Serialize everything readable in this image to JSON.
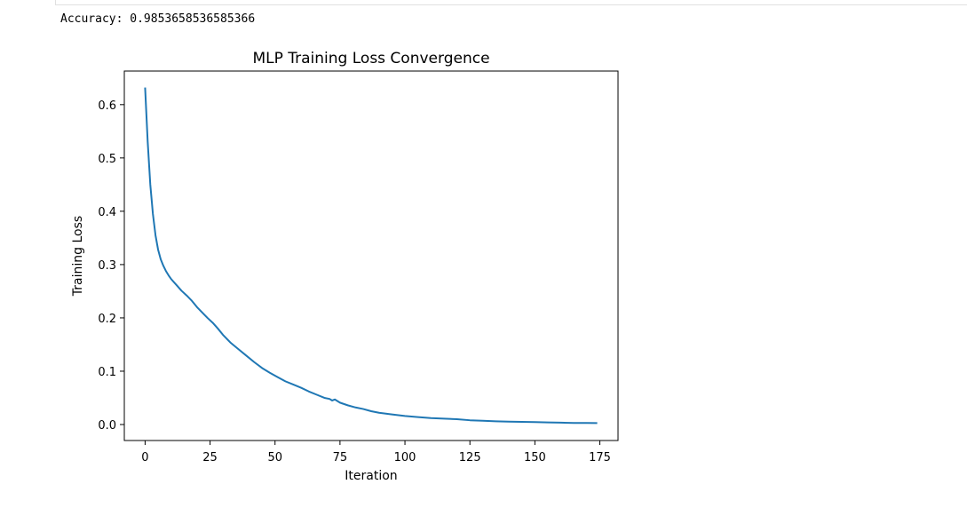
{
  "output": {
    "stdout": "Accuracy: 0.9853658536585366"
  },
  "chart_data": {
    "type": "line",
    "title": "MLP Training Loss Convergence",
    "xlabel": "Iteration",
    "ylabel": "Training Loss",
    "xlim": [
      -8,
      182
    ],
    "ylim": [
      -0.03,
      0.663
    ],
    "xticks": [
      0,
      25,
      50,
      75,
      100,
      125,
      150,
      175
    ],
    "yticks": [
      0.0,
      0.1,
      0.2,
      0.3,
      0.4,
      0.5,
      0.6
    ],
    "ytick_labels": [
      "0.0",
      "0.1",
      "0.2",
      "0.3",
      "0.4",
      "0.5",
      "0.6"
    ],
    "grid": false,
    "series": [
      {
        "color": "#1f77b4",
        "x": [
          0,
          1,
          2,
          3,
          4,
          5,
          6,
          7,
          8,
          9,
          10,
          12,
          14,
          16,
          18,
          20,
          22,
          24,
          26,
          28,
          30,
          33,
          36,
          39,
          42,
          45,
          48,
          51,
          54,
          57,
          60,
          63,
          66,
          69,
          71,
          72,
          73,
          75,
          78,
          81,
          84,
          87,
          90,
          95,
          100,
          105,
          110,
          115,
          120,
          125,
          130,
          135,
          140,
          145,
          150,
          155,
          160,
          165,
          170,
          174
        ],
        "y": [
          0.632,
          0.53,
          0.45,
          0.395,
          0.355,
          0.328,
          0.31,
          0.298,
          0.288,
          0.28,
          0.273,
          0.262,
          0.251,
          0.242,
          0.232,
          0.22,
          0.21,
          0.2,
          0.191,
          0.18,
          0.168,
          0.153,
          0.141,
          0.129,
          0.117,
          0.106,
          0.097,
          0.089,
          0.081,
          0.075,
          0.069,
          0.062,
          0.056,
          0.05,
          0.048,
          0.045,
          0.047,
          0.041,
          0.036,
          0.032,
          0.029,
          0.025,
          0.022,
          0.019,
          0.016,
          0.014,
          0.012,
          0.011,
          0.01,
          0.008,
          0.007,
          0.006,
          0.0055,
          0.005,
          0.0045,
          0.004,
          0.0035,
          0.003,
          0.0028,
          0.0026
        ]
      }
    ]
  }
}
